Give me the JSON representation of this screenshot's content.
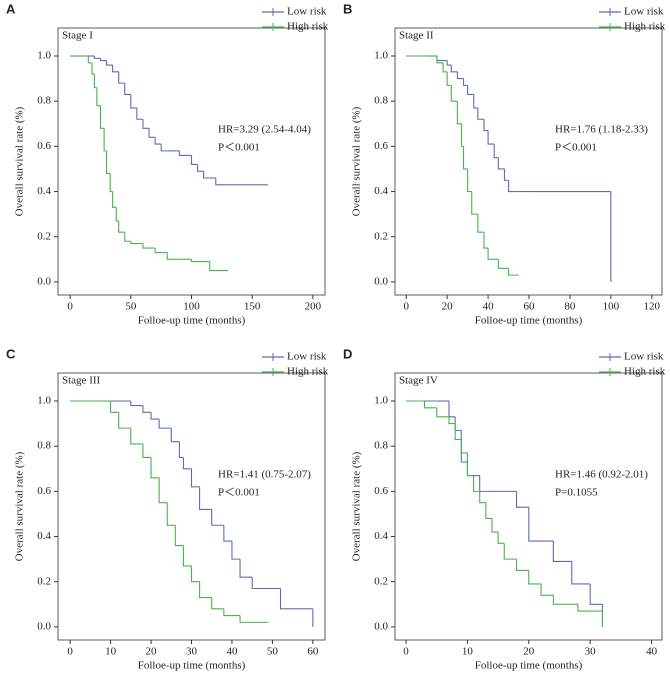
{
  "chart_data": [
    {
      "type": "step",
      "panel": "A",
      "subtitle": "Stage I",
      "xlabel": "Folloe-up time (months)",
      "ylabel": "Overall survival rate (%)",
      "annotations": [
        "HR=3.29 (2.54-4.04)",
        "P＜0.001"
      ],
      "xlim": [
        -10,
        210
      ],
      "xticks": [
        0,
        50,
        100,
        150,
        200
      ],
      "ylim": [
        -0.058,
        1.124
      ],
      "yticks": [
        {
          "value": 0,
          "label": "0.0"
        },
        {
          "value": 0.2,
          "label": "0.2"
        },
        {
          "value": 0.4,
          "label": "0.4"
        },
        {
          "value": 0.6,
          "label": "0.6"
        },
        {
          "value": 0.8,
          "label": "0.8"
        },
        {
          "value": 1,
          "label": "1.0"
        }
      ],
      "series": [
        {
          "name": "Low risk",
          "color": "#5a6db3",
          "x": [
            0,
            10,
            20,
            25,
            30,
            35,
            40,
            45,
            50,
            55,
            60,
            65,
            70,
            75,
            80,
            90,
            100,
            105,
            110,
            115,
            120,
            163
          ],
          "values": [
            1,
            1,
            0.99,
            0.98,
            0.96,
            0.93,
            0.88,
            0.83,
            0.77,
            0.72,
            0.68,
            0.64,
            0.61,
            0.58,
            0.58,
            0.56,
            0.52,
            0.49,
            0.46,
            0.46,
            0.43,
            0.43
          ]
        },
        {
          "name": "High risk",
          "color": "#45b649",
          "x": [
            0,
            10,
            15,
            18,
            20,
            22,
            25,
            28,
            30,
            33,
            35,
            38,
            40,
            45,
            50,
            60,
            70,
            80,
            90,
            100,
            110,
            115,
            130
          ],
          "values": [
            1,
            1,
            0.97,
            0.92,
            0.86,
            0.78,
            0.68,
            0.58,
            0.48,
            0.4,
            0.33,
            0.27,
            0.22,
            0.18,
            0.17,
            0.15,
            0.13,
            0.1,
            0.1,
            0.09,
            0.09,
            0.05,
            0.05
          ]
        }
      ]
    },
    {
      "type": "step",
      "panel": "B",
      "subtitle": "Stage II",
      "xlabel": "Folloe-up time (months)",
      "ylabel": "Overall survival rate (%)",
      "annotations": [
        "HR=1.76 (1.18-2.33)",
        "P＜0.001"
      ],
      "xlim": [
        -5.5,
        125
      ],
      "xticks": [
        0,
        20,
        40,
        60,
        80,
        100,
        120
      ],
      "ylim": [
        -0.058,
        1.124
      ],
      "yticks": [
        {
          "value": 0,
          "label": "0.0"
        },
        {
          "value": 0.2,
          "label": "0.2"
        },
        {
          "value": 0.4,
          "label": "0.4"
        },
        {
          "value": 0.6,
          "label": "0.6"
        },
        {
          "value": 0.8,
          "label": "0.8"
        },
        {
          "value": 1,
          "label": "1.0"
        }
      ],
      "series": [
        {
          "name": "Low risk",
          "color": "#5a6db3",
          "x": [
            0,
            10,
            15,
            20,
            22,
            25,
            28,
            30,
            33,
            35,
            38,
            40,
            43,
            45,
            48,
            50,
            52,
            55,
            60,
            100
          ],
          "values": [
            1,
            1,
            0.98,
            0.96,
            0.93,
            0.9,
            0.87,
            0.83,
            0.77,
            0.72,
            0.67,
            0.61,
            0.55,
            0.5,
            0.45,
            0.4,
            0.4,
            0.4,
            0.4,
            0
          ]
        },
        {
          "name": "High risk",
          "color": "#45b649",
          "x": [
            0,
            10,
            15,
            18,
            20,
            22,
            25,
            27,
            28,
            30,
            32,
            35,
            38,
            40,
            45,
            50,
            55
          ],
          "values": [
            1,
            1,
            0.97,
            0.93,
            0.87,
            0.8,
            0.7,
            0.6,
            0.5,
            0.4,
            0.3,
            0.22,
            0.15,
            0.1,
            0.06,
            0.03,
            0.03
          ]
        }
      ]
    },
    {
      "type": "step",
      "panel": "C",
      "subtitle": "Stage III",
      "xlabel": "Folloe-up time (months)",
      "ylabel": "Overall survival rate (%)",
      "annotations": [
        "HR=1.41 (0.75-2.07)",
        "P＜0.001"
      ],
      "xlim": [
        -3,
        63
      ],
      "xticks": [
        0,
        10,
        20,
        30,
        40,
        50,
        60
      ],
      "ylim": [
        -0.058,
        1.124
      ],
      "yticks": [
        {
          "value": 0,
          "label": "0.0"
        },
        {
          "value": 0.2,
          "label": "0.2"
        },
        {
          "value": 0.4,
          "label": "0.4"
        },
        {
          "value": 0.6,
          "label": "0.6"
        },
        {
          "value": 0.8,
          "label": "0.8"
        },
        {
          "value": 1,
          "label": "1.0"
        }
      ],
      "series": [
        {
          "name": "Low risk",
          "color": "#5a6db3",
          "x": [
            0,
            10,
            15,
            18,
            20,
            22,
            25,
            27,
            28,
            30,
            32,
            35,
            38,
            40,
            42,
            45,
            50,
            52,
            60
          ],
          "values": [
            1,
            1,
            0.98,
            0.95,
            0.92,
            0.88,
            0.82,
            0.75,
            0.7,
            0.62,
            0.52,
            0.45,
            0.38,
            0.3,
            0.22,
            0.17,
            0.17,
            0.08,
            0
          ]
        },
        {
          "name": "High risk",
          "color": "#45b649",
          "x": [
            0,
            8,
            10,
            12,
            15,
            18,
            20,
            22,
            24,
            26,
            28,
            30,
            32,
            35,
            38,
            42,
            49
          ],
          "values": [
            1,
            1,
            0.95,
            0.88,
            0.81,
            0.75,
            0.66,
            0.55,
            0.45,
            0.36,
            0.27,
            0.2,
            0.13,
            0.08,
            0.05,
            0.02,
            0.02
          ]
        }
      ]
    },
    {
      "type": "step",
      "panel": "D",
      "subtitle": "Stage IV",
      "xlabel": "Folloe-up time (months)",
      "ylabel": "Overall survival rate (%)",
      "annotations": [
        "HR=1.46 (0.92-2.01)",
        "P=0.1055"
      ],
      "xlim": [
        -1.8,
        41.7
      ],
      "xticks": [
        0,
        10,
        20,
        30,
        40
      ],
      "ylim": [
        -0.058,
        1.124
      ],
      "yticks": [
        {
          "value": 0,
          "label": "0.0"
        },
        {
          "value": 0.2,
          "label": "0.2"
        },
        {
          "value": 0.4,
          "label": "0.4"
        },
        {
          "value": 0.6,
          "label": "0.6"
        },
        {
          "value": 0.8,
          "label": "0.8"
        },
        {
          "value": 1,
          "label": "1.0"
        }
      ],
      "series": [
        {
          "name": "Low risk",
          "color": "#5a6db3",
          "x": [
            0,
            5,
            7,
            8,
            9,
            10,
            12,
            18,
            20,
            24,
            27,
            30,
            32
          ],
          "values": [
            1,
            1,
            0.93,
            0.87,
            0.73,
            0.67,
            0.6,
            0.53,
            0.38,
            0.29,
            0.19,
            0.1,
            0
          ]
        },
        {
          "name": "High risk",
          "color": "#45b649",
          "x": [
            0,
            3,
            5,
            7,
            8,
            9,
            10,
            11,
            12,
            13,
            14,
            15,
            16,
            18,
            20,
            22,
            24,
            28,
            31,
            32
          ],
          "values": [
            1,
            0.97,
            0.93,
            0.9,
            0.83,
            0.77,
            0.67,
            0.6,
            0.55,
            0.48,
            0.42,
            0.37,
            0.3,
            0.25,
            0.19,
            0.14,
            0.1,
            0.07,
            0.07,
            0
          ]
        }
      ]
    }
  ]
}
